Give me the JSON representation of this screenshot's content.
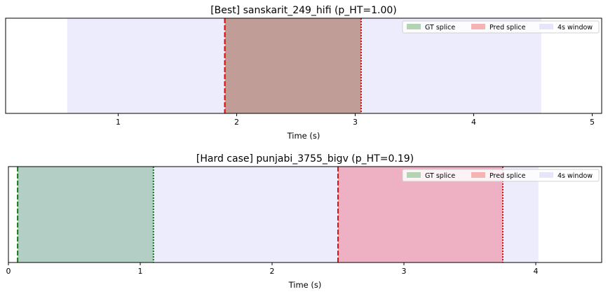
{
  "chart_data": [
    {
      "type": "timeline",
      "title": "[Best] sanskarit_249_hifi  (p_HT=1.00)",
      "xlabel": "Time (s)",
      "xlim": [
        0.05,
        5.08
      ],
      "xticks": [
        "1",
        "2",
        "3",
        "4",
        "5"
      ],
      "xtick_values": [
        1,
        2,
        3,
        4,
        5
      ],
      "gt_splice": [
        1.9,
        3.05
      ],
      "pred_splice": [
        1.9,
        3.05
      ],
      "window": [
        0.57,
        4.57
      ],
      "legend": [
        "GT splice",
        "Pred splice",
        "4s window"
      ],
      "legend_position": "upper-right"
    },
    {
      "type": "timeline",
      "title": "[Hard case] punjabi_3755_bigv  (p_HT=0.19)",
      "xlabel": "Time (s)",
      "xlim": [
        0,
        4.5
      ],
      "xticks": [
        "0",
        "1",
        "2",
        "3",
        "4"
      ],
      "xtick_values": [
        0,
        1,
        2,
        3,
        4
      ],
      "gt_splice": [
        0.07,
        1.1
      ],
      "pred_splice": [
        2.5,
        3.75
      ],
      "window": [
        0.07,
        4.02
      ],
      "legend": [
        "GT splice",
        "Pred splice",
        "4s window"
      ],
      "legend_position": "upper-right"
    }
  ],
  "colors": {
    "gt": "#b2cec5",
    "pred": "#eeb1c3",
    "both": "#c09d96",
    "window": "#ececfc",
    "gt_line": "#117711",
    "pred_line": "#dd1111",
    "legend_gt": "#b3d4b3",
    "legend_pred": "#f5b3b3",
    "legend_window": "#e6e6fa"
  }
}
